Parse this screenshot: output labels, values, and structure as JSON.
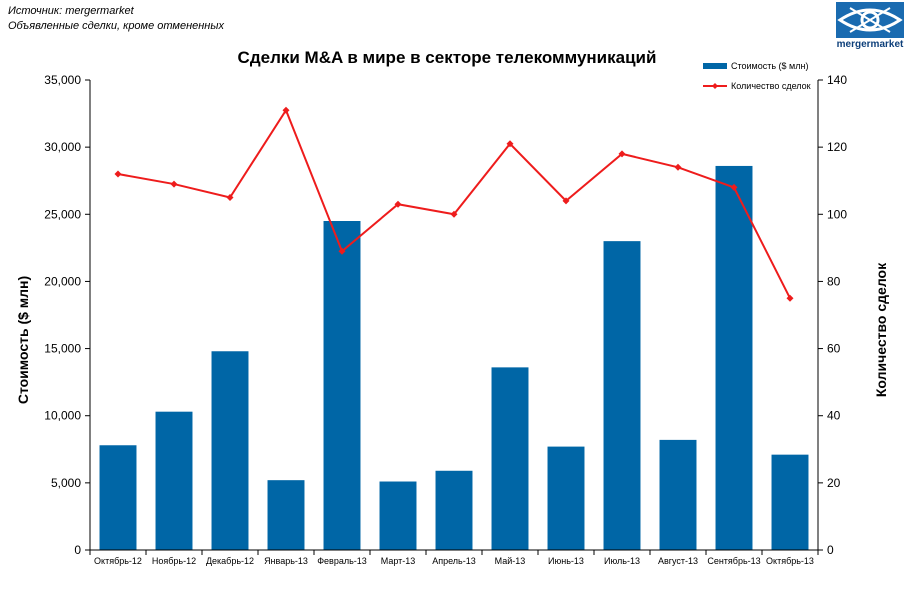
{
  "source": {
    "line1": "Источник: mergermarket",
    "line2": "Объявленные сделки, кроме отмененных"
  },
  "logo": {
    "text": "mergermarket",
    "icon": "eye-icon"
  },
  "chart_data": {
    "type": "bar",
    "title": "Сделки M&A в мире в секторе телекоммуникаций",
    "ylabel": "Стоимость  ($ млн)",
    "y2label": "Количество сделок",
    "ylim": [
      0,
      35000
    ],
    "y2lim": [
      0,
      140
    ],
    "yticks": [
      "0",
      "5,000",
      "10,000",
      "15,000",
      "20,000",
      "25,000",
      "30,000",
      "35,000"
    ],
    "y2ticks": [
      "0",
      "20",
      "40",
      "60",
      "80",
      "100",
      "120",
      "140"
    ],
    "categories": [
      "Октябрь-12",
      "Ноябрь-12",
      "Декабрь-12",
      "Январь-13",
      "Февраль-13",
      "Март-13",
      "Апрель-13",
      "Май-13",
      "Июнь-13",
      "Июль-13",
      "Август-13",
      "Сентябрь-13",
      "Октябрь-13"
    ],
    "series": [
      {
        "name": "Стоимость ($ млн)",
        "type": "bar",
        "axis": "left",
        "color": "#0066a6",
        "values": [
          7800,
          10300,
          14800,
          5200,
          24500,
          5100,
          5900,
          13600,
          7700,
          23000,
          8200,
          28600,
          7100
        ]
      },
      {
        "name": "Количество сделок",
        "type": "line",
        "axis": "right",
        "color": "#ee1c1c",
        "values": [
          112,
          109,
          105,
          131,
          89,
          103,
          100,
          121,
          104,
          118,
          114,
          108,
          75
        ]
      }
    ],
    "legend": "top-right",
    "grid": false
  }
}
